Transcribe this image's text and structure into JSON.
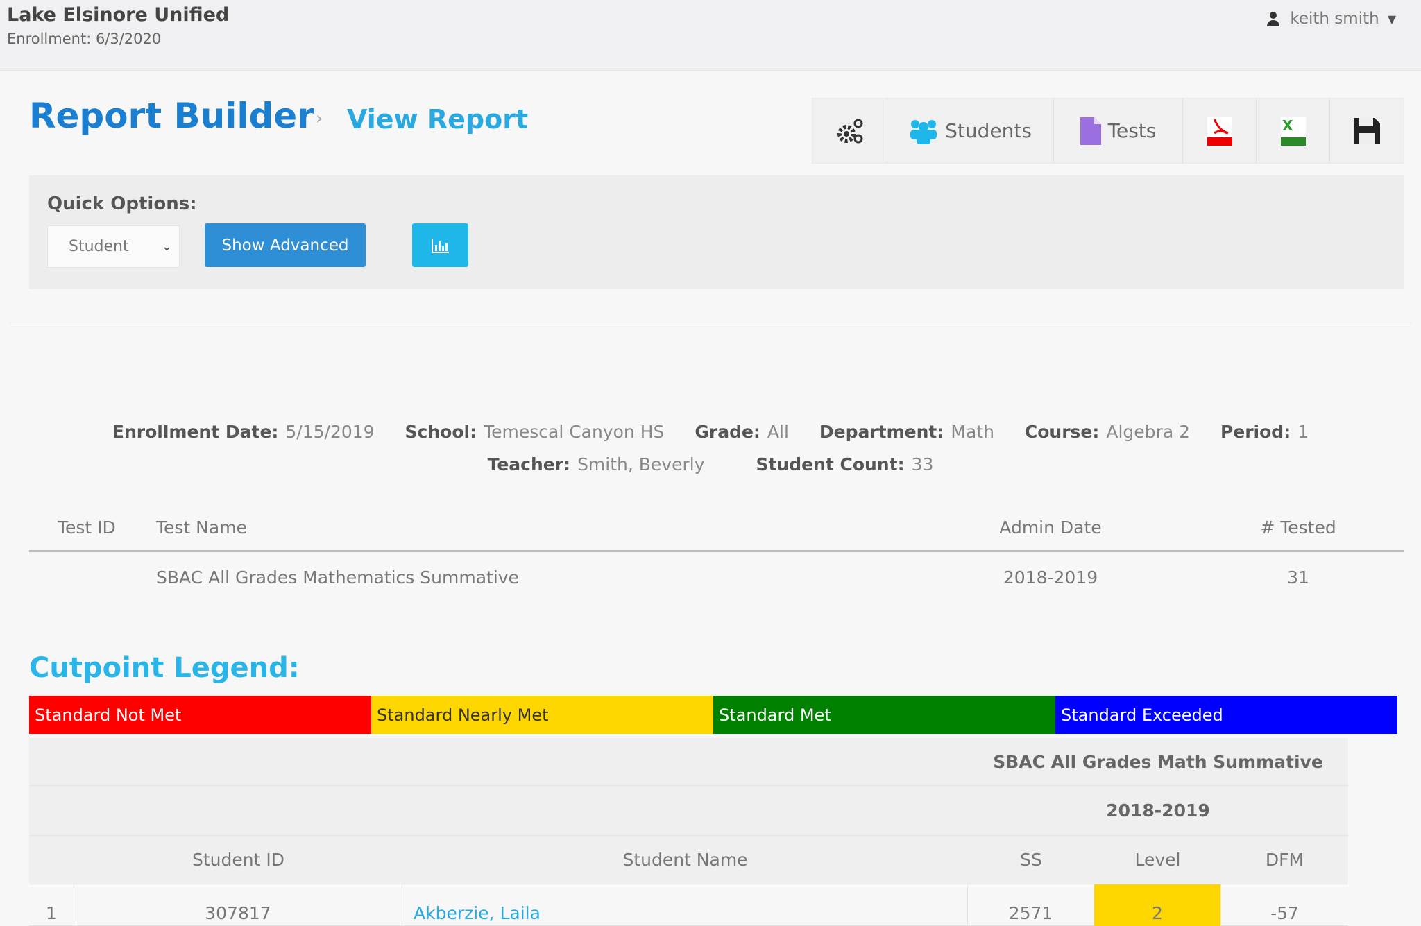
{
  "header": {
    "org": "Lake Elsinore Unified",
    "enrollment": "Enrollment: 6/3/2020",
    "user": "keith smith"
  },
  "page": {
    "title": "Report Builder",
    "breadcrumb_sep": "›",
    "subtitle": "View Report"
  },
  "toolbar": {
    "students": "Students",
    "tests": "Tests",
    "icons": [
      "gears-icon",
      "users-icon",
      "file-icon",
      "pdf-icon",
      "excel-icon",
      "save-icon"
    ]
  },
  "quick": {
    "label": "Quick Options:",
    "select": "Student",
    "advanced": "Show Advanced"
  },
  "info": {
    "enroll_label": "Enrollment Date:",
    "enroll": "5/15/2019",
    "school_label": "School:",
    "school": "Temescal Canyon HS",
    "grade_label": "Grade:",
    "grade": "All",
    "dept_label": "Department:",
    "dept": "Math",
    "course_label": "Course:",
    "course": "Algebra 2",
    "period_label": "Period:",
    "period": "1",
    "teacher_label": "Teacher:",
    "teacher": "Smith, Beverly",
    "count_label": "Student Count:",
    "count": "33"
  },
  "tests": {
    "headers": [
      "Test ID",
      "Test Name",
      "Admin Date",
      "# Tested"
    ],
    "rows": [
      {
        "id": "",
        "name": "SBAC All Grades Mathematics Summative",
        "date": "2018-2019",
        "tested": "31"
      }
    ]
  },
  "legend": {
    "title": "Cutpoint Legend:",
    "items": [
      {
        "label": "Standard Not Met",
        "color": "#ff0000",
        "text": "#ffffff"
      },
      {
        "label": "Standard Nearly Met",
        "color": "#ffd700",
        "text": "#333333"
      },
      {
        "label": "Standard Met",
        "color": "#008000",
        "text": "#ffffff"
      },
      {
        "label": "Standard Exceeded",
        "color": "#0000ff",
        "text": "#ffffff"
      }
    ]
  },
  "grid": {
    "test": "SBAC All Grades Math Summative",
    "year": "2018-2019",
    "headers": [
      "Student ID",
      "Student Name",
      "SS",
      "Level",
      "DFM"
    ],
    "rows": [
      {
        "n": "1",
        "id": "307817",
        "name": "Akberzie, Laila",
        "ss": "2571",
        "level": "2",
        "level_color": "#ffd700",
        "dfm": "-57"
      }
    ]
  }
}
